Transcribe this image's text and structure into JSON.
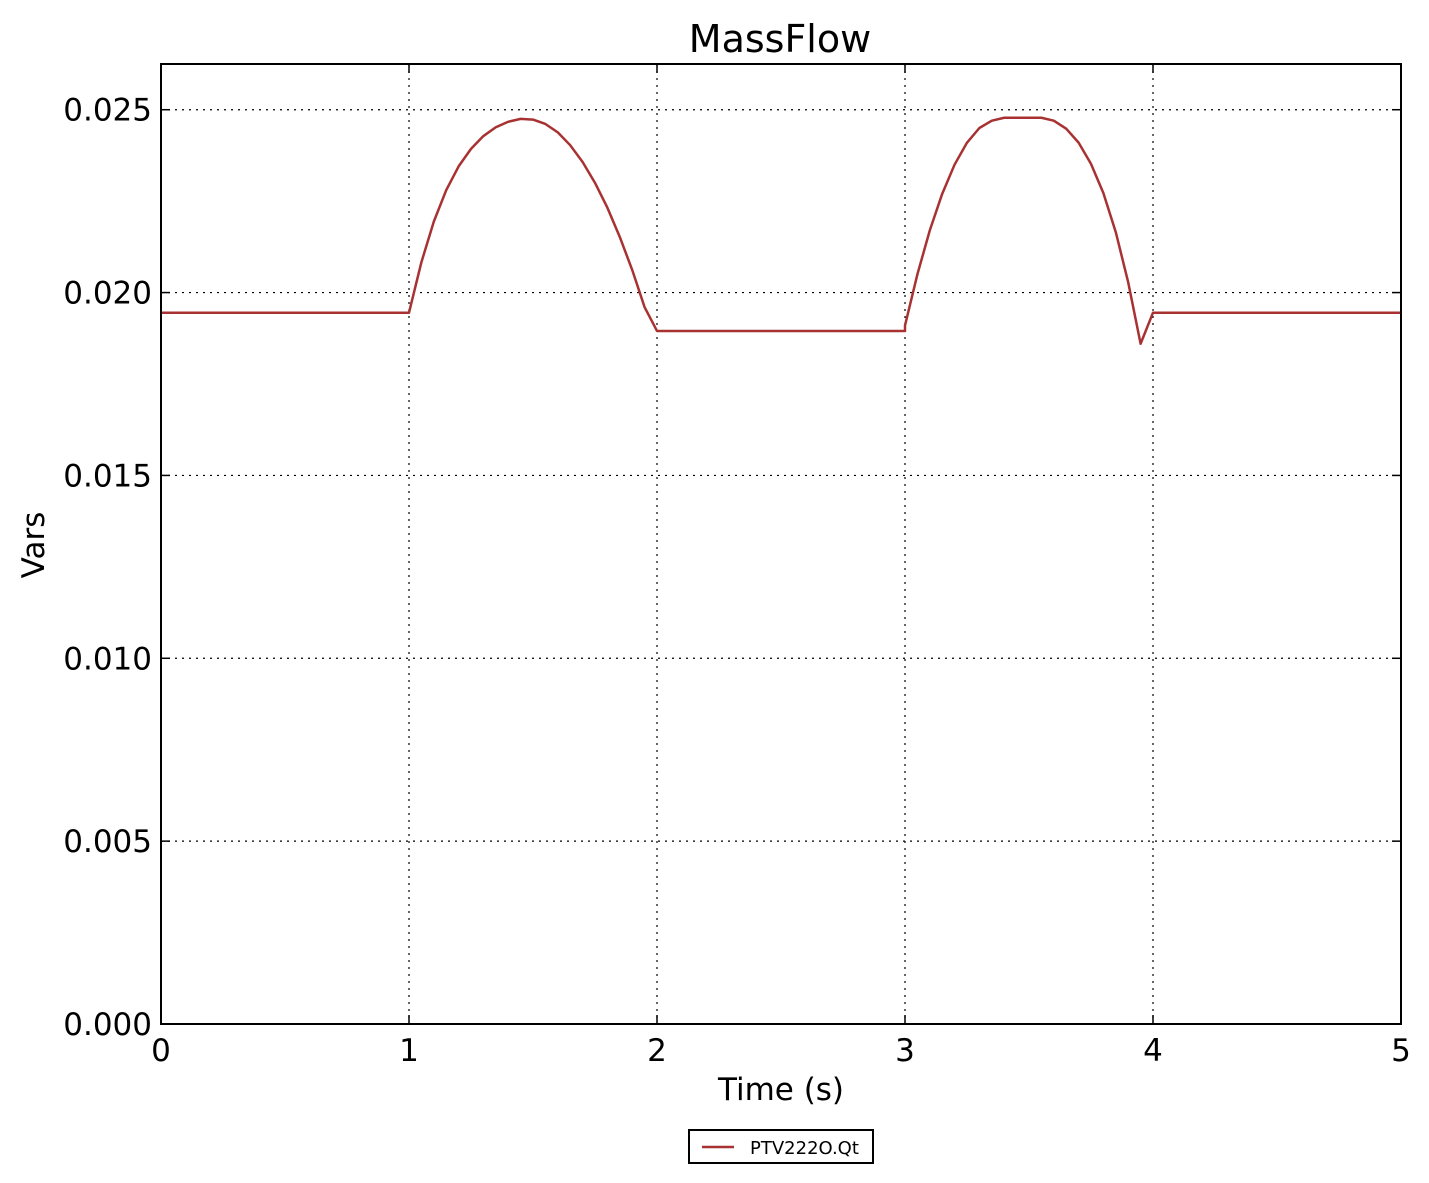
{
  "chart_data": {
    "type": "line",
    "title": "MassFlow",
    "xlabel": "Time (s)",
    "ylabel": "Vars",
    "xlim": [
      0,
      5
    ],
    "ylim": [
      0,
      0.02625
    ],
    "x_ticks": [
      0,
      1,
      2,
      3,
      4,
      5
    ],
    "x_tick_labels": [
      "0",
      "1",
      "2",
      "3",
      "4",
      "5"
    ],
    "y_ticks": [
      0,
      0.005,
      0.01,
      0.015,
      0.02,
      0.025
    ],
    "y_tick_labels": [
      "0.000",
      "0.005",
      "0.010",
      "0.015",
      "0.020",
      "0.025"
    ],
    "grid": true,
    "legend_position": "bottom-center, below plot",
    "series": [
      {
        "name": "PTV222O.Qt",
        "color": "#a83232",
        "x": [
          0,
          0.5,
          1.0,
          1.05,
          1.1,
          1.15,
          1.2,
          1.25,
          1.3,
          1.35,
          1.4,
          1.45,
          1.5,
          1.55,
          1.6,
          1.65,
          1.7,
          1.75,
          1.8,
          1.85,
          1.9,
          1.95,
          2.0,
          2.5,
          3.0,
          3.0,
          3.05,
          3.1,
          3.15,
          3.2,
          3.25,
          3.3,
          3.35,
          3.4,
          3.45,
          3.5,
          3.55,
          3.6,
          3.65,
          3.7,
          3.75,
          3.8,
          3.85,
          3.9,
          3.95,
          4.0,
          4.5,
          5.0
        ],
        "y": [
          0.01945,
          0.01945,
          0.01945,
          0.02083,
          0.02194,
          0.0228,
          0.02345,
          0.02393,
          0.02428,
          0.02452,
          0.02467,
          0.02475,
          0.02473,
          0.02461,
          0.02438,
          0.02403,
          0.02357,
          0.023,
          0.02232,
          0.02152,
          0.02062,
          0.0196,
          0.01895,
          0.01895,
          0.01895,
          0.0191,
          0.0205,
          0.0217,
          0.0227,
          0.0235,
          0.0241,
          0.0245,
          0.0247,
          0.02478,
          0.02478,
          0.02478,
          0.02478,
          0.0247,
          0.02448,
          0.0241,
          0.02352,
          0.02272,
          0.02165,
          0.02028,
          0.0186,
          0.01945,
          0.01945,
          0.01945
        ]
      }
    ]
  }
}
